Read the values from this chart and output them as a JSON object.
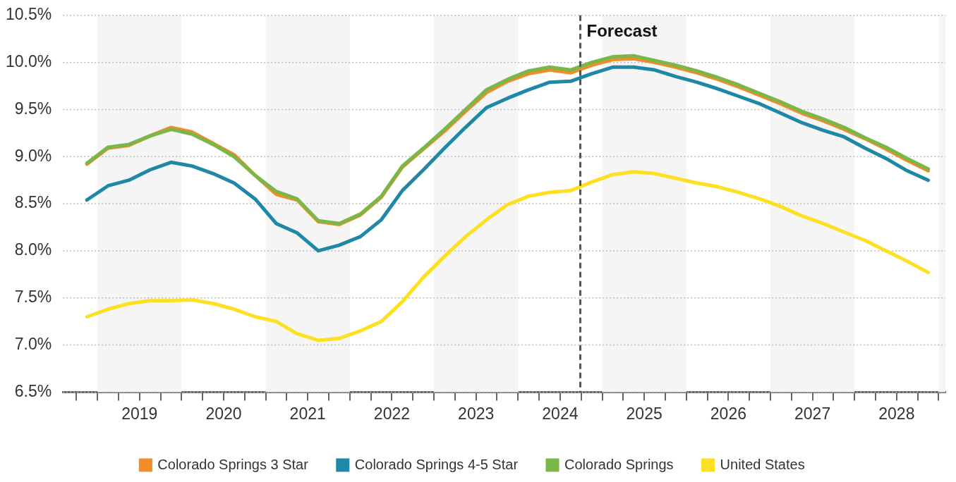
{
  "chart_data": {
    "type": "line",
    "x": [
      2018.875,
      2019.125,
      2019.375,
      2019.625,
      2019.875,
      2020.125,
      2020.375,
      2020.625,
      2020.875,
      2021.125,
      2021.375,
      2021.625,
      2021.875,
      2022.125,
      2022.375,
      2022.625,
      2022.875,
      2023.125,
      2023.375,
      2023.625,
      2023.875,
      2024.125,
      2024.375,
      2024.625,
      2024.875,
      2025.125,
      2025.375,
      2025.625,
      2025.875,
      2026.125,
      2026.375,
      2026.625,
      2026.875,
      2027.125,
      2027.375,
      2027.625,
      2027.875,
      2028.125,
      2028.375,
      2028.625,
      2028.875
    ],
    "series": [
      {
        "name": "Colorado Springs 3 Star",
        "color": "#f28c28",
        "values": [
          8.92,
          9.09,
          9.12,
          9.22,
          9.31,
          9.26,
          9.14,
          9.02,
          8.8,
          8.6,
          8.54,
          8.31,
          8.28,
          8.38,
          8.57,
          8.89,
          9.08,
          9.27,
          9.48,
          9.68,
          9.8,
          9.88,
          9.92,
          9.89,
          9.97,
          10.03,
          10.04,
          10.0,
          9.95,
          9.89,
          9.82,
          9.74,
          9.65,
          9.56,
          9.46,
          9.38,
          9.29,
          9.19,
          9.08,
          8.96,
          8.85
        ]
      },
      {
        "name": "Colorado Springs 4-5 Star",
        "color": "#1f88a6",
        "values": [
          8.54,
          8.69,
          8.75,
          8.86,
          8.94,
          8.9,
          8.82,
          8.72,
          8.55,
          8.29,
          8.19,
          8.0,
          8.06,
          8.15,
          8.33,
          8.64,
          8.86,
          9.09,
          9.31,
          9.52,
          9.62,
          9.71,
          9.79,
          9.8,
          9.88,
          9.95,
          9.95,
          9.92,
          9.85,
          9.79,
          9.72,
          9.64,
          9.56,
          9.46,
          9.36,
          9.28,
          9.21,
          9.09,
          8.98,
          8.85,
          8.75
        ]
      },
      {
        "name": "Colorado Springs",
        "color": "#7ab648",
        "values": [
          8.93,
          9.1,
          9.13,
          9.22,
          9.29,
          9.24,
          9.13,
          9.0,
          8.8,
          8.63,
          8.55,
          8.32,
          8.29,
          8.39,
          8.58,
          8.9,
          9.09,
          9.29,
          9.5,
          9.71,
          9.82,
          9.91,
          9.95,
          9.92,
          10.0,
          10.06,
          10.07,
          10.02,
          9.97,
          9.91,
          9.84,
          9.76,
          9.67,
          9.58,
          9.48,
          9.4,
          9.31,
          9.2,
          9.1,
          8.98,
          8.87
        ]
      },
      {
        "name": "United States",
        "color": "#fde021",
        "values": [
          7.3,
          7.38,
          7.44,
          7.47,
          7.47,
          7.48,
          7.44,
          7.38,
          7.3,
          7.25,
          7.12,
          7.05,
          7.07,
          7.15,
          7.25,
          7.46,
          7.72,
          7.94,
          8.15,
          8.33,
          8.49,
          8.58,
          8.62,
          8.64,
          8.73,
          8.81,
          8.84,
          8.82,
          8.77,
          8.72,
          8.68,
          8.62,
          8.55,
          8.47,
          8.37,
          8.29,
          8.2,
          8.11,
          8.0,
          7.89,
          7.77
        ]
      }
    ],
    "xlim": [
      2018.59,
      2029.08
    ],
    "xticks": [
      {
        "value": 2018.75,
        "label": null
      },
      {
        "value": 2019,
        "label": null
      },
      {
        "value": 2019.25,
        "label": null
      },
      {
        "value": 2019.5,
        "label": "2019"
      },
      {
        "value": 2019.75,
        "label": null
      },
      {
        "value": 2020,
        "label": null
      },
      {
        "value": 2020.25,
        "label": null
      },
      {
        "value": 2020.5,
        "label": "2020"
      },
      {
        "value": 2020.75,
        "label": null
      },
      {
        "value": 2021,
        "label": null
      },
      {
        "value": 2021.25,
        "label": null
      },
      {
        "value": 2021.5,
        "label": "2021"
      },
      {
        "value": 2021.75,
        "label": null
      },
      {
        "value": 2022,
        "label": null
      },
      {
        "value": 2022.25,
        "label": null
      },
      {
        "value": 2022.5,
        "label": "2022"
      },
      {
        "value": 2022.75,
        "label": null
      },
      {
        "value": 2023,
        "label": null
      },
      {
        "value": 2023.25,
        "label": null
      },
      {
        "value": 2023.5,
        "label": "2023"
      },
      {
        "value": 2023.75,
        "label": null
      },
      {
        "value": 2024,
        "label": null
      },
      {
        "value": 2024.25,
        "label": null
      },
      {
        "value": 2024.5,
        "label": "2024"
      },
      {
        "value": 2024.75,
        "label": null
      },
      {
        "value": 2025,
        "label": null
      },
      {
        "value": 2025.25,
        "label": null
      },
      {
        "value": 2025.5,
        "label": "2025"
      },
      {
        "value": 2025.75,
        "label": null
      },
      {
        "value": 2026,
        "label": null
      },
      {
        "value": 2026.25,
        "label": null
      },
      {
        "value": 2026.5,
        "label": "2026"
      },
      {
        "value": 2026.75,
        "label": null
      },
      {
        "value": 2027,
        "label": null
      },
      {
        "value": 2027.25,
        "label": null
      },
      {
        "value": 2027.5,
        "label": "2027"
      },
      {
        "value": 2027.75,
        "label": null
      },
      {
        "value": 2028,
        "label": null
      },
      {
        "value": 2028.25,
        "label": null
      },
      {
        "value": 2028.5,
        "label": "2028"
      },
      {
        "value": 2028.75,
        "label": null
      },
      {
        "value": 2029,
        "label": null
      }
    ],
    "ylim": [
      6.5,
      10.5
    ],
    "yticks": [
      {
        "value": 6.5,
        "label": "6.5%"
      },
      {
        "value": 7,
        "label": "7.0%"
      },
      {
        "value": 7.5,
        "label": "7.5%"
      },
      {
        "value": 8,
        "label": "8.0%"
      },
      {
        "value": 8.5,
        "label": "8.5%"
      },
      {
        "value": 9,
        "label": "9.0%"
      },
      {
        "value": 9.5,
        "label": "9.5%"
      },
      {
        "value": 10,
        "label": "10.0%"
      },
      {
        "value": 10.5,
        "label": "10.5%"
      }
    ],
    "ref_lines": [
      {
        "axis": "x",
        "value": 2024.74,
        "label": "Forecast",
        "color": "#555555",
        "line_style": "dashed"
      }
    ],
    "bands": [
      {
        "axis": "x",
        "from": 2019,
        "to": 2020,
        "color": "#f5f5f5"
      },
      {
        "axis": "x",
        "from": 2021,
        "to": 2022,
        "color": "#f5f5f5"
      },
      {
        "axis": "x",
        "from": 2023,
        "to": 2024,
        "color": "#f5f5f5"
      },
      {
        "axis": "x",
        "from": 2025,
        "to": 2026,
        "color": "#f5f5f5"
      },
      {
        "axis": "x",
        "from": 2027,
        "to": 2028,
        "color": "#f5f5f5"
      },
      {
        "axis": "x",
        "from": 2029,
        "to": 2029.08,
        "color": "#f5f5f5"
      }
    ],
    "grid": "y",
    "legend": "bottom",
    "marker": "none",
    "line_style": "solid"
  }
}
